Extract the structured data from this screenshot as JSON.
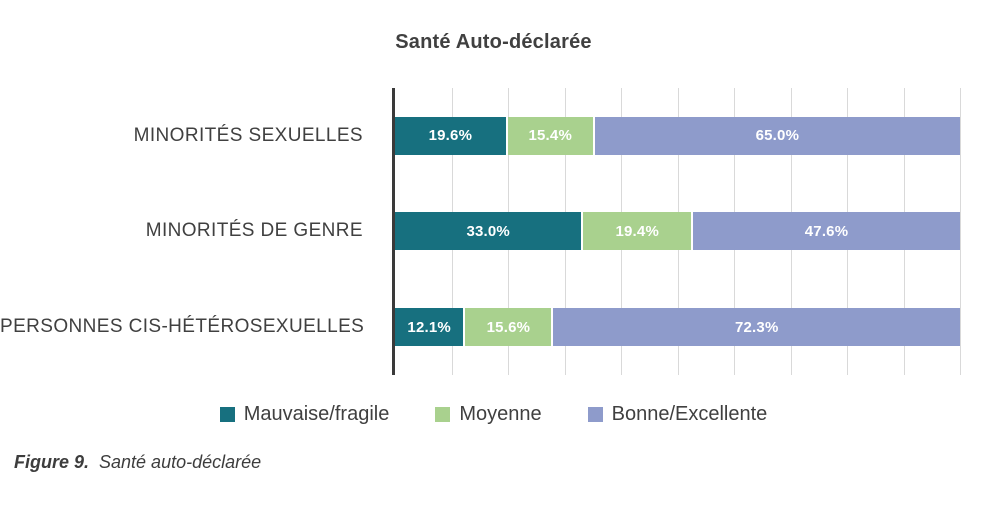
{
  "title": "Santé Auto-déclarée",
  "caption": {
    "label": "Figure 9.",
    "text": "Santé auto-déclarée"
  },
  "chart_data": {
    "type": "bar",
    "orientation": "horizontal",
    "stacked": true,
    "title": "Santé Auto-déclarée",
    "categories": [
      "MINORITÉS SEXUELLES",
      "MINORITÉS DE GENRE",
      "PERSONNES CIS-HÉTÉROSEXUELLES"
    ],
    "series": [
      {
        "name": "Mauvaise/fragile",
        "color": "#17707f",
        "values": [
          19.6,
          33.0,
          12.1
        ]
      },
      {
        "name": "Moyenne",
        "color": "#a9d18e",
        "values": [
          15.4,
          19.4,
          15.6
        ]
      },
      {
        "name": "Bonne/Excellente",
        "color": "#8e9bcb",
        "values": [
          65.0,
          47.6,
          72.3
        ]
      }
    ],
    "data_labels": [
      [
        "19.6%",
        "15.4%",
        "65.0%"
      ],
      [
        "33.0%",
        "19.4%",
        "47.6%"
      ],
      [
        "12.1%",
        "15.6%",
        "72.3%"
      ]
    ],
    "xlim": [
      0,
      100
    ],
    "gridline_interval_percent": 10,
    "grid": true,
    "legend_position": "bottom",
    "colors": {
      "axis": "#3a3a3a",
      "gridline": "#d9d9d9",
      "text": "#404040",
      "bar_label_text": "#ffffff",
      "background": "#ffffff"
    }
  }
}
